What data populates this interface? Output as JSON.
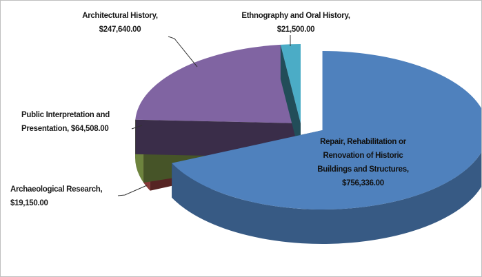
{
  "chart_data": {
    "type": "pie3d",
    "categories": [
      "Repair, Rehabilitation or Renovation of Historic Buildings and Structures,",
      "Archaeological Research,",
      "Public Interpretation and Presentation,",
      "Architectural History,",
      "Ethnography and Oral History,"
    ],
    "values": [
      756336,
      19150,
      64508,
      247640,
      21500
    ],
    "value_labels": [
      "$756,336.00",
      "$19,150.00",
      "$64,508.00",
      "$247,640.00",
      "$21,500.00"
    ],
    "colors": [
      "#4f81bd",
      "#c0504d",
      "#9bbb59",
      "#8064a2",
      "#4bacc6"
    ],
    "exploded": [
      0
    ]
  }
}
